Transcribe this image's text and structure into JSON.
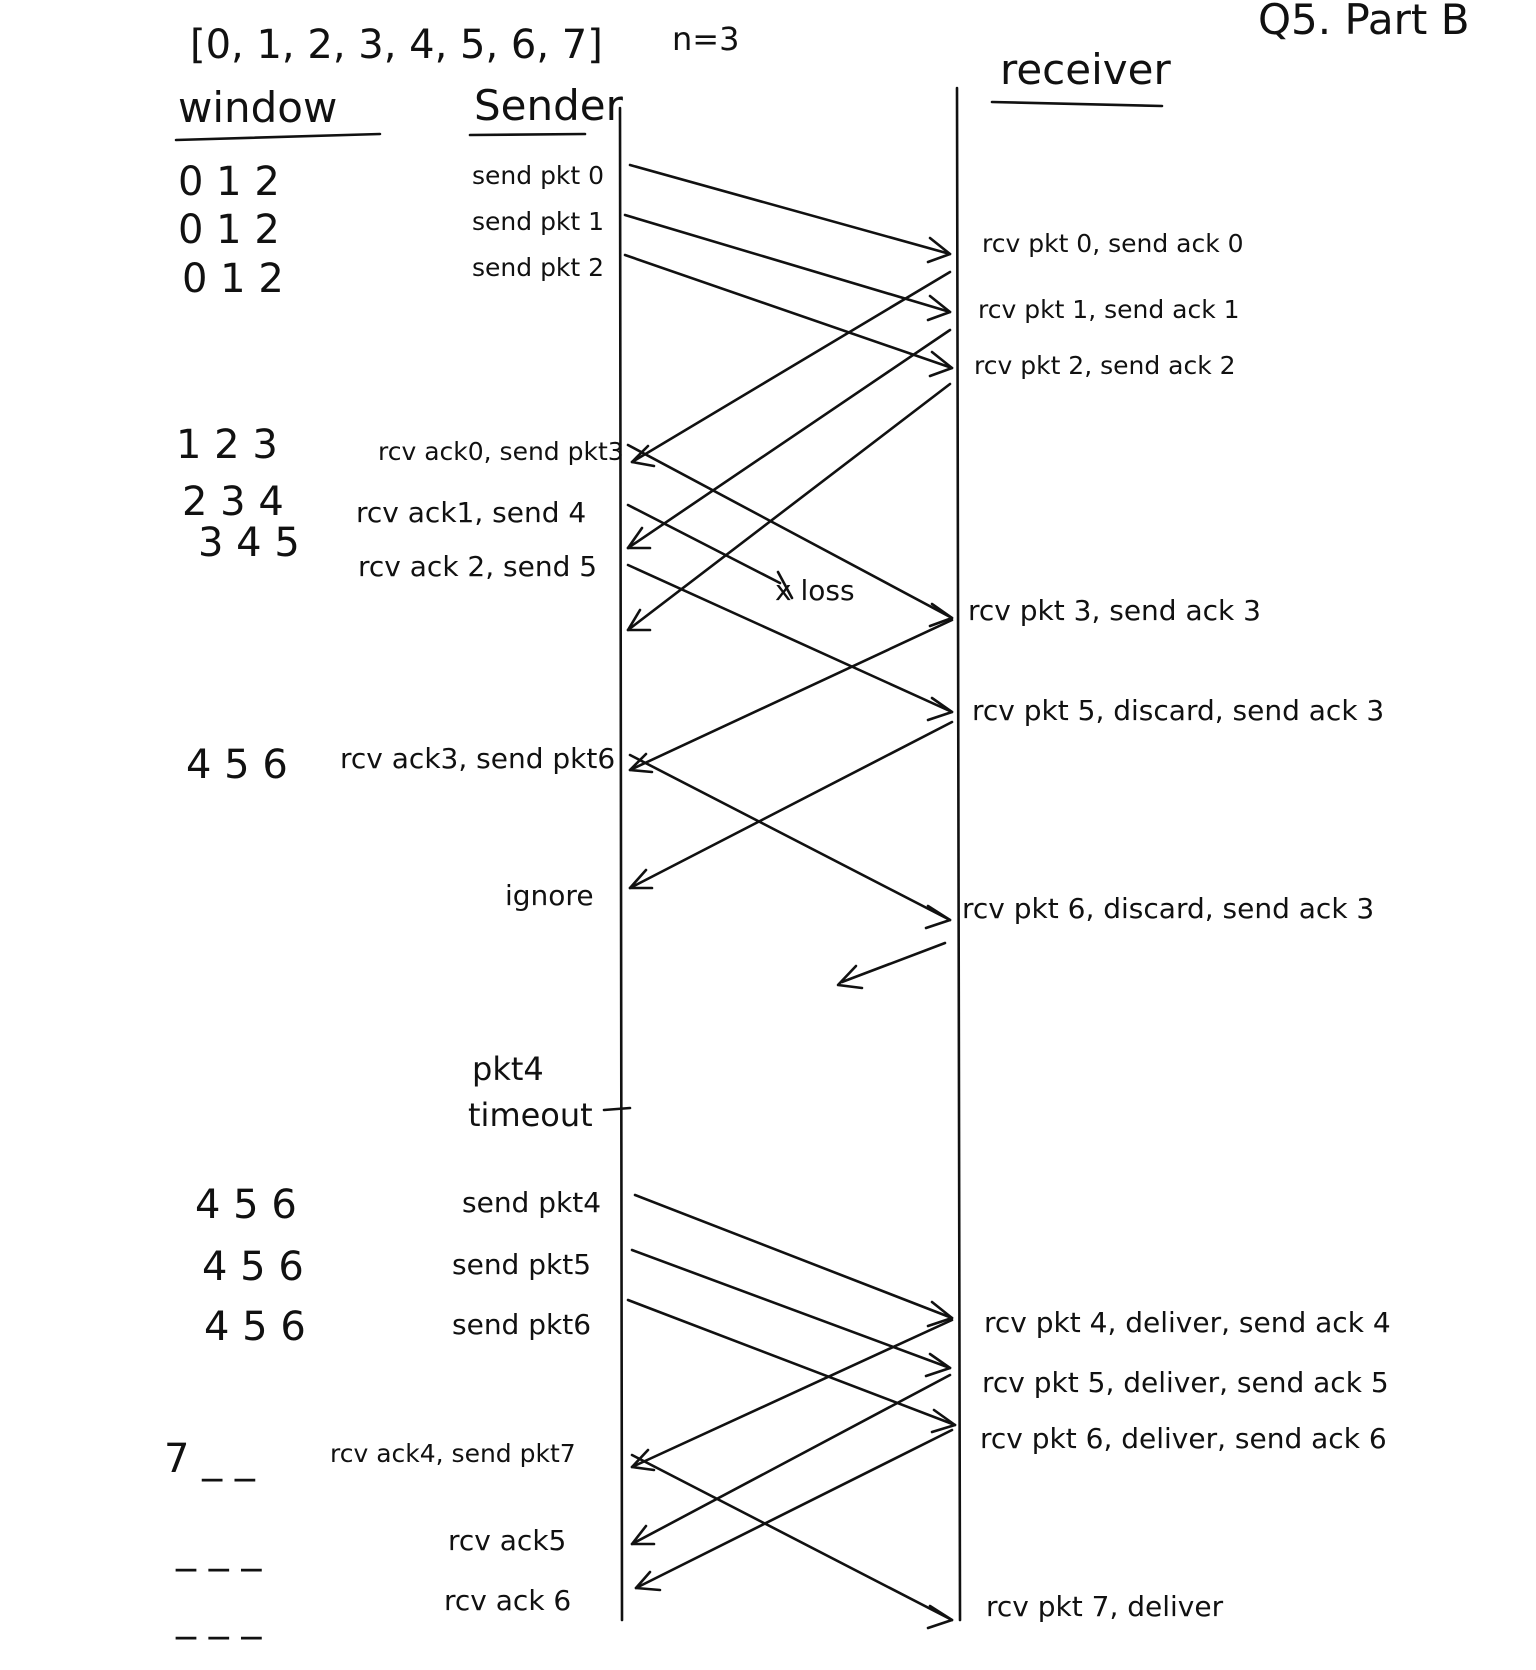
{
  "header": {
    "sequence": "[0, 1, 2, 3, 4, 5, 6, 7]",
    "n": "n=3",
    "title": "Q5. Part B"
  },
  "columns": {
    "window": "window",
    "sender": "Sender",
    "receiver": "receiver"
  },
  "windows": [
    "0 1 2",
    "0 1 2",
    "0 1 2",
    "1 2 3",
    "2 3 4",
    "3 4 5",
    "4 5 6",
    "4 5 6",
    "4 5 6",
    "4 5 6",
    "7 _ _",
    "_ _ _",
    "_ _ _"
  ],
  "sender_events": [
    "send pkt 0",
    "send pkt 1",
    "send pkt 2",
    "rcv ack0, send pkt3",
    "rcv ack1, send 4",
    "rcv ack 2, send 5",
    "rcv ack3, send pkt6",
    "ignore",
    "pkt4",
    "timeout",
    "send pkt4",
    "send pkt5",
    "send pkt6",
    "rcv ack4, send pkt7",
    "rcv ack5",
    "rcv ack 6"
  ],
  "loss_label": "x loss",
  "receiver_events": [
    "rcv pkt 0, send ack 0",
    "rcv pkt 1, send ack 1",
    "rcv pkt 2, send ack 2",
    "rcv pkt 3, send ack 3",
    "rcv pkt 5, discard, send ack 3",
    "rcv pkt 6, discard, send ack 3",
    "rcv pkt 4, deliver, send ack 4",
    "rcv pkt 5, deliver, send ack 5",
    "rcv pkt 6, deliver, send ack 6",
    "rcv pkt 7, deliver"
  ]
}
